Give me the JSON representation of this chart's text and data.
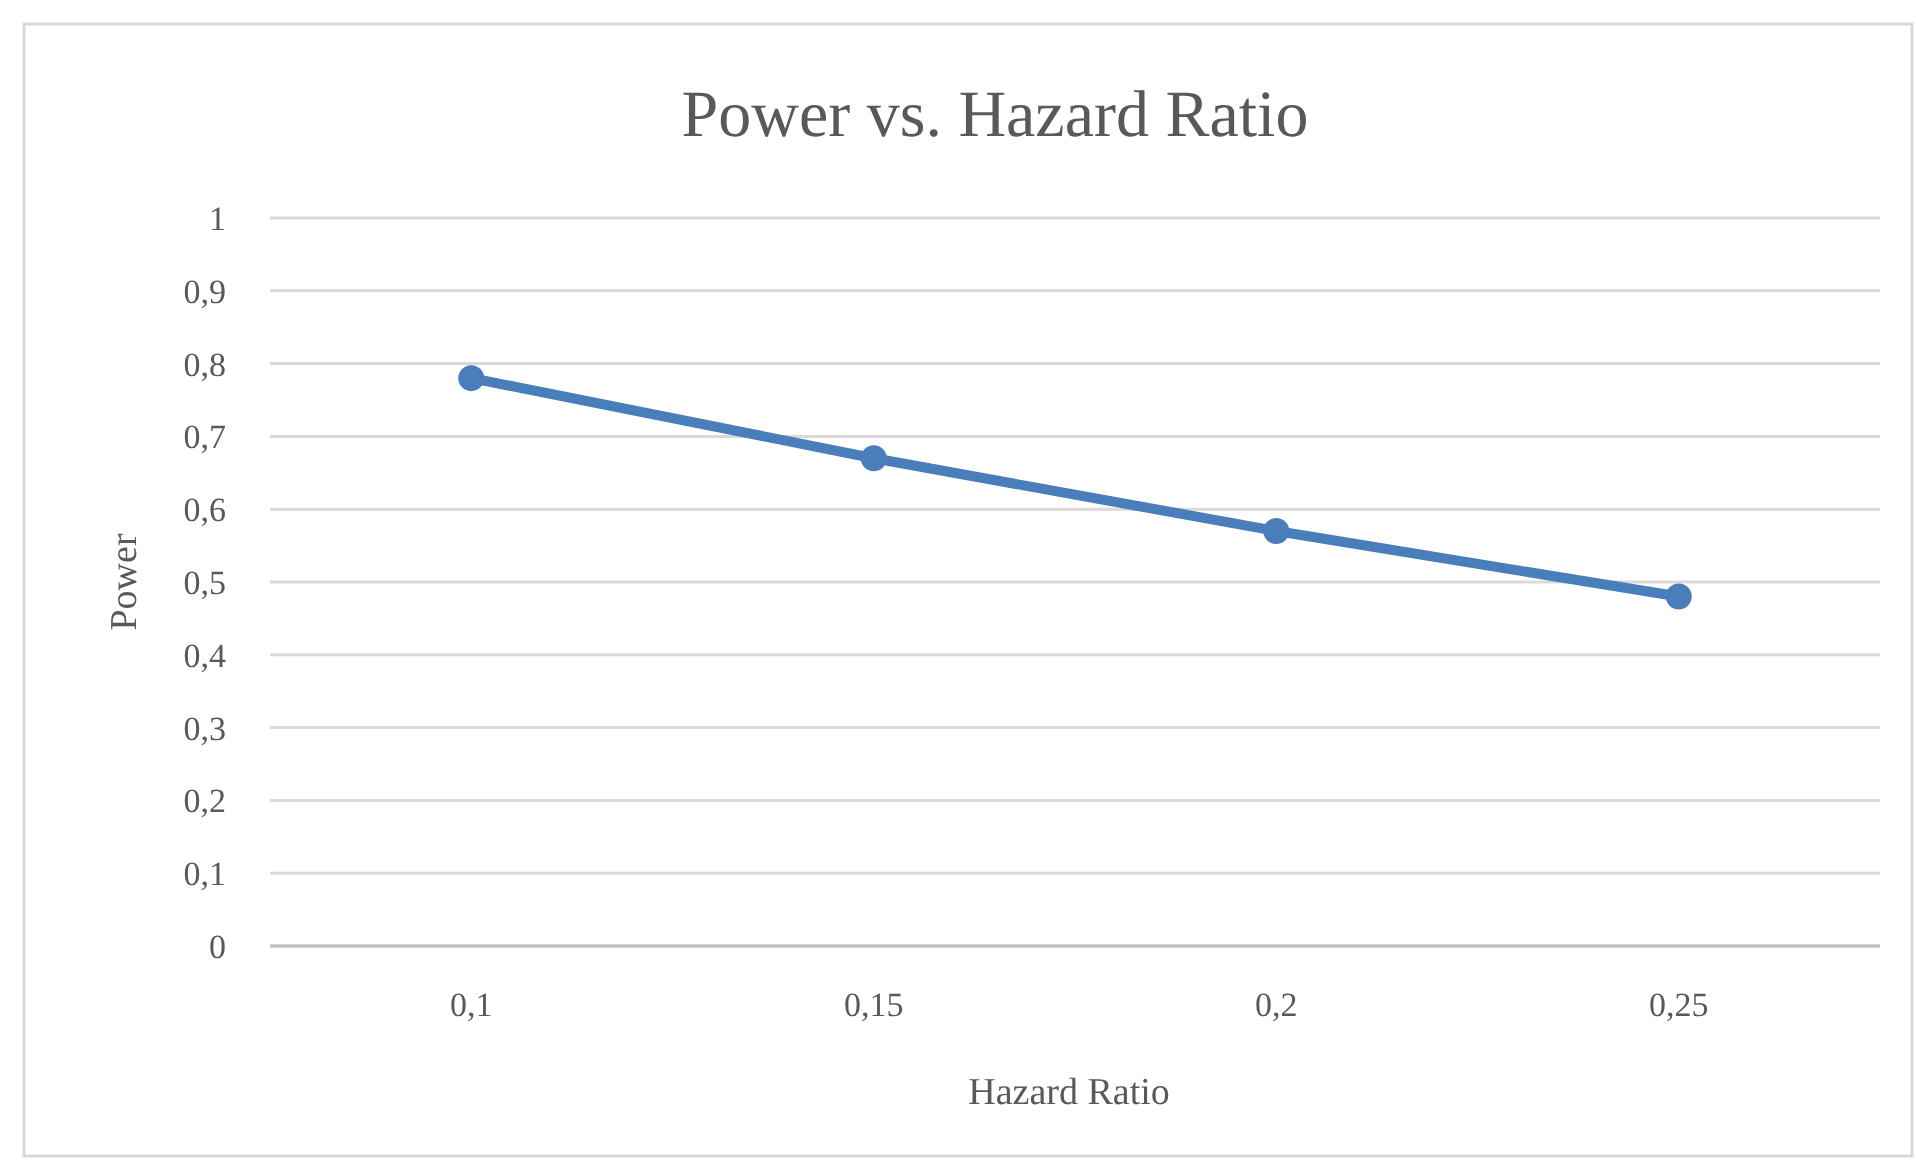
{
  "chart_data": {
    "type": "line",
    "title": "Power vs. Hazard Ratio",
    "xlabel": "Hazard Ratio",
    "ylabel": "Power",
    "categories": [
      "0,1",
      "0,15",
      "0,2",
      "0,25"
    ],
    "series": [
      {
        "color": "#4a7ebb",
        "values": [
          0.78,
          0.67,
          0.57,
          0.48
        ]
      }
    ],
    "ylim": [
      0,
      1
    ],
    "yticks": [
      0,
      {
        "value": 0.1,
        "label": "0,1"
      },
      {
        "value": 0.2,
        "label": "0,2"
      },
      {
        "value": 0.3,
        "label": "0,3"
      },
      {
        "value": 0.4,
        "label": "0,4"
      },
      {
        "value": 0.5,
        "label": "0,5"
      },
      {
        "value": 0.6,
        "label": "0,6"
      },
      {
        "value": 0.7,
        "label": "0,7"
      },
      {
        "value": 0.8,
        "label": "0,8"
      },
      {
        "value": 0.9,
        "label": "0,9"
      },
      1
    ],
    "grid": "y",
    "marker": "circle",
    "line_style": "solid"
  }
}
